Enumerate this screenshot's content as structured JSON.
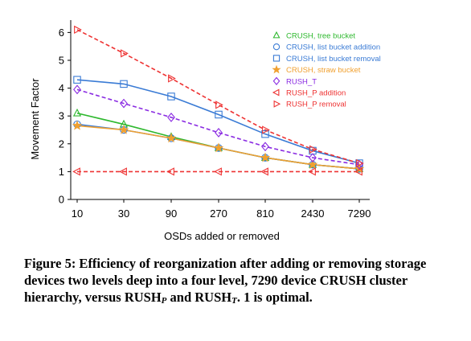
{
  "chart_data": {
    "type": "line",
    "x": [
      "10",
      "30",
      "90",
      "270",
      "810",
      "2430",
      "7290"
    ],
    "xlabel": "OSDs added or removed",
    "ylabel": "Movement Factor",
    "ylim": [
      0,
      6.3
    ],
    "yticks": [
      "0",
      "1",
      "2",
      "3",
      "4",
      "5",
      "6"
    ],
    "grid": false,
    "legend": "top-right",
    "series": [
      {
        "name": "CRUSH, tree bucket",
        "color": "#2eb82e",
        "marker": "triangle-up",
        "dash": false,
        "values": [
          3.1,
          2.7,
          2.25,
          1.85,
          1.5,
          1.25,
          1.1
        ]
      },
      {
        "name": "CRUSH, list bucket addition",
        "color": "#3a7bd5",
        "marker": "circle",
        "dash": false,
        "values": [
          2.7,
          2.5,
          2.2,
          1.85,
          1.5,
          1.25,
          1.1
        ]
      },
      {
        "name": "CRUSH, list bucket removal",
        "color": "#3a7bd5",
        "marker": "square",
        "dash": false,
        "values": [
          4.3,
          4.15,
          3.7,
          3.05,
          2.35,
          1.75,
          1.3
        ]
      },
      {
        "name": "CRUSH, straw bucket",
        "color": "#f0a030",
        "marker": "star",
        "dash": false,
        "values": [
          2.65,
          2.5,
          2.2,
          1.85,
          1.5,
          1.25,
          1.1
        ]
      },
      {
        "name": "RUSH_T",
        "color": "#8a2be2",
        "marker": "diamond",
        "dash": true,
        "values": [
          3.95,
          3.45,
          2.95,
          2.4,
          1.9,
          1.5,
          1.25
        ]
      },
      {
        "name": "RUSH_P addition",
        "color": "#ee3333",
        "marker": "triangle-left",
        "dash": true,
        "values": [
          1.0,
          1.0,
          1.0,
          1.0,
          1.0,
          1.0,
          1.0
        ]
      },
      {
        "name": "RUSH_P removal",
        "color": "#ee3333",
        "marker": "triangle-right",
        "dash": true,
        "values": [
          6.1,
          5.25,
          4.35,
          3.4,
          2.5,
          1.8,
          1.3
        ]
      }
    ]
  },
  "caption": {
    "part1": "Figure 5: Efficiency of reorganization after adding or removing storage devices two levels deep into a four level, 7290 device CRUSH cluster hierarchy, versus RUSH",
    "sub_p": "P",
    "part2": " and RUSH",
    "sub_t": "T",
    "part3": ". 1 is optimal."
  }
}
